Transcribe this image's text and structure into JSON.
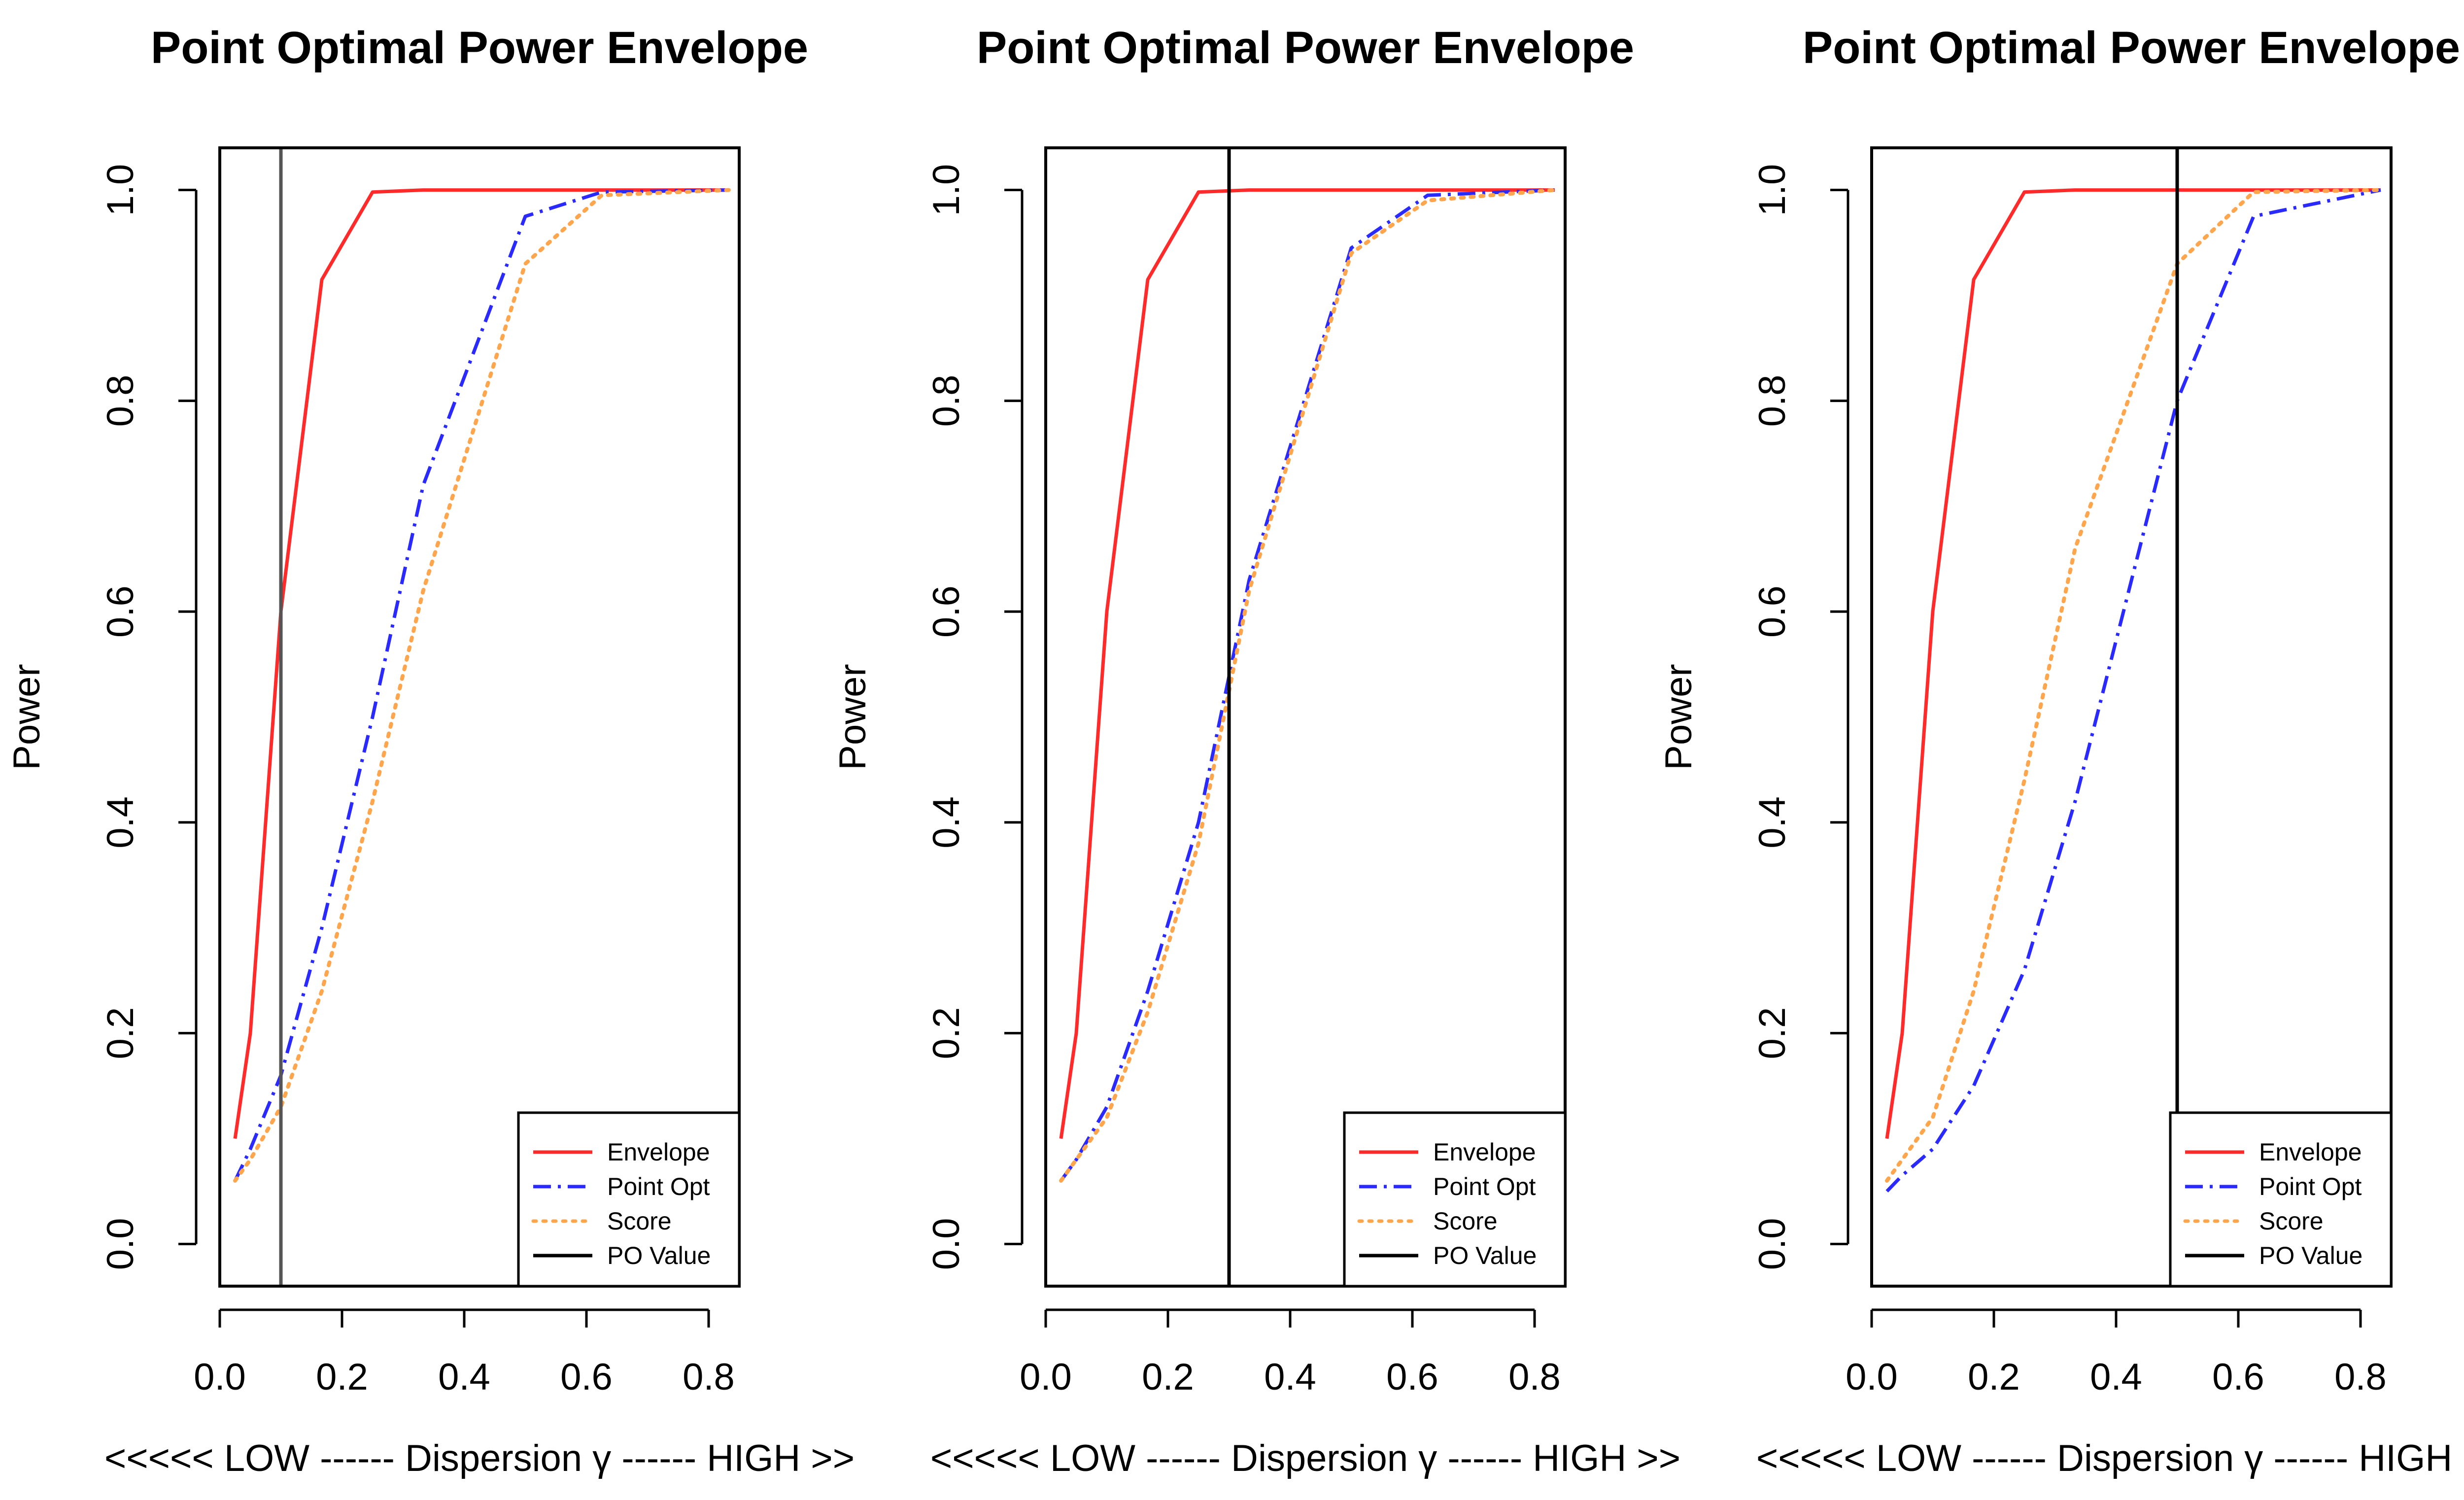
{
  "figure_title": "Point Optimal Power Envelope (three panels)",
  "chart_data": [
    {
      "type": "line",
      "title": "Point Optimal Power Envelope",
      "xlabel": "<<<<< LOW ------ Dispersion γ ------ HIGH >>",
      "ylabel": "Power",
      "xlim": [
        0.0,
        0.85
      ],
      "ylim": [
        -0.04,
        1.04
      ],
      "xticks": [
        0.0,
        0.2,
        0.4,
        0.6,
        0.8
      ],
      "xtick_labels": [
        "0.0",
        "0.2",
        "0.4",
        "0.6",
        "0.8"
      ],
      "yticks": [
        0.0,
        0.2,
        0.4,
        0.6,
        0.8,
        1.0
      ],
      "ytick_labels": [
        "0.0",
        "0.2",
        "0.4",
        "0.6",
        "0.8",
        "1.0"
      ],
      "po_value": 0.1,
      "legend_position": "bottom-right",
      "series": [
        {
          "name": "Envelope",
          "color": "#ff2a2a",
          "style": "solid",
          "x": [
            0.025,
            0.05,
            0.1,
            0.167,
            0.25,
            0.333,
            0.5,
            0.625,
            0.833
          ],
          "y": [
            0.1,
            0.2,
            0.6,
            0.915,
            0.998,
            1.0,
            1.0,
            1.0,
            1.0
          ]
        },
        {
          "name": "Point Opt",
          "color": "#2a2aff",
          "style": "dashdot",
          "x": [
            0.025,
            0.05,
            0.1,
            0.167,
            0.25,
            0.333,
            0.5,
            0.625,
            0.833
          ],
          "y": [
            0.06,
            0.09,
            0.16,
            0.3,
            0.5,
            0.72,
            0.975,
            0.998,
            1.0
          ]
        },
        {
          "name": "Score",
          "color": "#ffa64d",
          "style": "dotted",
          "x": [
            0.025,
            0.05,
            0.1,
            0.167,
            0.25,
            0.333,
            0.5,
            0.625,
            0.833
          ],
          "y": [
            0.06,
            0.08,
            0.13,
            0.24,
            0.42,
            0.62,
            0.93,
            0.995,
            1.0
          ]
        },
        {
          "name": "PO Value",
          "color": "#000000",
          "style": "solid",
          "x": [],
          "y": []
        }
      ]
    },
    {
      "type": "line",
      "title": "Point Optimal Power Envelope",
      "xlabel": "<<<<< LOW ------ Dispersion γ ------ HIGH >>",
      "ylabel": "Power",
      "xlim": [
        0.0,
        0.85
      ],
      "ylim": [
        -0.04,
        1.04
      ],
      "xticks": [
        0.0,
        0.2,
        0.4,
        0.6,
        0.8
      ],
      "xtick_labels": [
        "0.0",
        "0.2",
        "0.4",
        "0.6",
        "0.8"
      ],
      "yticks": [
        0.0,
        0.2,
        0.4,
        0.6,
        0.8,
        1.0
      ],
      "ytick_labels": [
        "0.0",
        "0.2",
        "0.4",
        "0.6",
        "0.8",
        "1.0"
      ],
      "po_value": 0.3,
      "legend_position": "bottom-right",
      "series": [
        {
          "name": "Envelope",
          "color": "#ff2a2a",
          "style": "solid",
          "x": [
            0.025,
            0.05,
            0.1,
            0.167,
            0.25,
            0.333,
            0.5,
            0.625,
            0.833
          ],
          "y": [
            0.1,
            0.2,
            0.6,
            0.915,
            0.998,
            1.0,
            1.0,
            1.0,
            1.0
          ]
        },
        {
          "name": "Point Opt",
          "color": "#2a2aff",
          "style": "dashdot",
          "x": [
            0.025,
            0.05,
            0.1,
            0.167,
            0.25,
            0.333,
            0.5,
            0.625,
            0.833
          ],
          "y": [
            0.06,
            0.08,
            0.13,
            0.24,
            0.4,
            0.63,
            0.945,
            0.995,
            1.0
          ]
        },
        {
          "name": "Score",
          "color": "#ffa64d",
          "style": "dotted",
          "x": [
            0.025,
            0.05,
            0.1,
            0.167,
            0.25,
            0.333,
            0.5,
            0.625,
            0.833
          ],
          "y": [
            0.06,
            0.08,
            0.12,
            0.22,
            0.38,
            0.62,
            0.94,
            0.99,
            1.0
          ]
        },
        {
          "name": "PO Value",
          "color": "#000000",
          "style": "solid",
          "x": [],
          "y": []
        }
      ]
    },
    {
      "type": "line",
      "title": "Point Optimal Power Envelope",
      "xlabel": "<<<<< LOW ------ Dispersion γ ------ HIGH >>",
      "ylabel": "Power",
      "xlim": [
        0.0,
        0.85
      ],
      "ylim": [
        -0.04,
        1.04
      ],
      "xticks": [
        0.0,
        0.2,
        0.4,
        0.6,
        0.8
      ],
      "xtick_labels": [
        "0.0",
        "0.2",
        "0.4",
        "0.6",
        "0.8"
      ],
      "yticks": [
        0.0,
        0.2,
        0.4,
        0.6,
        0.8,
        1.0
      ],
      "ytick_labels": [
        "0.0",
        "0.2",
        "0.4",
        "0.6",
        "0.8",
        "1.0"
      ],
      "po_value": 0.5,
      "legend_position": "bottom-right",
      "series": [
        {
          "name": "Envelope",
          "color": "#ff2a2a",
          "style": "solid",
          "x": [
            0.025,
            0.05,
            0.1,
            0.167,
            0.25,
            0.333,
            0.5,
            0.625,
            0.833
          ],
          "y": [
            0.1,
            0.2,
            0.6,
            0.915,
            0.998,
            1.0,
            1.0,
            1.0,
            1.0
          ]
        },
        {
          "name": "Point Opt",
          "color": "#2a2aff",
          "style": "dashdot",
          "x": [
            0.025,
            0.05,
            0.1,
            0.167,
            0.25,
            0.333,
            0.5,
            0.625,
            0.833
          ],
          "y": [
            0.05,
            0.065,
            0.09,
            0.15,
            0.26,
            0.42,
            0.8,
            0.975,
            1.0
          ]
        },
        {
          "name": "Score",
          "color": "#ffa64d",
          "style": "dotted",
          "x": [
            0.025,
            0.05,
            0.1,
            0.167,
            0.25,
            0.333,
            0.5,
            0.625,
            0.833
          ],
          "y": [
            0.06,
            0.08,
            0.12,
            0.24,
            0.44,
            0.66,
            0.93,
            0.998,
            1.0
          ]
        },
        {
          "name": "PO Value",
          "color": "#000000",
          "style": "solid",
          "x": [],
          "y": []
        }
      ]
    }
  ]
}
